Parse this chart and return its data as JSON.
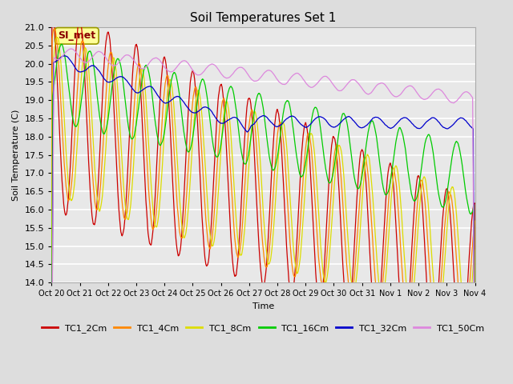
{
  "title": "Soil Temperatures Set 1",
  "ylabel": "Soil Temperature (C)",
  "xlabel": "Time",
  "annotation": "SI_met",
  "ylim": [
    14.0,
    21.0
  ],
  "yticks": [
    14.0,
    14.5,
    15.0,
    15.5,
    16.0,
    16.5,
    17.0,
    17.5,
    18.0,
    18.5,
    19.0,
    19.5,
    20.0,
    20.5,
    21.0
  ],
  "xtick_labels": [
    "Oct 20",
    "Oct 21",
    "Oct 22",
    "Oct 23",
    "Oct 24",
    "Oct 25",
    "Oct 26",
    "Oct 27",
    "Oct 28",
    "Oct 29",
    "Oct 30",
    "Oct 31",
    "Nov 1",
    "Nov 2",
    "Nov 3",
    "Nov 4"
  ],
  "series_colors": {
    "TC1_2Cm": "#cc0000",
    "TC1_4Cm": "#ff8800",
    "TC1_8Cm": "#dddd00",
    "TC1_16Cm": "#00cc00",
    "TC1_32Cm": "#0000cc",
    "TC1_50Cm": "#dd88dd"
  },
  "legend_colors": [
    "#cc0000",
    "#ff8800",
    "#dddd00",
    "#00cc00",
    "#0000cc",
    "#dd88dd"
  ],
  "legend_labels": [
    "TC1_2Cm",
    "TC1_4Cm",
    "TC1_8Cm",
    "TC1_16Cm",
    "TC1_32Cm",
    "TC1_50Cm"
  ],
  "bg_color": "#dddddd",
  "plot_bg_color": "#e8e8e8",
  "grid_color": "#ffffff",
  "annotation_bg": "#ffff99",
  "annotation_fg": "#880000",
  "annotation_edge": "#999900"
}
